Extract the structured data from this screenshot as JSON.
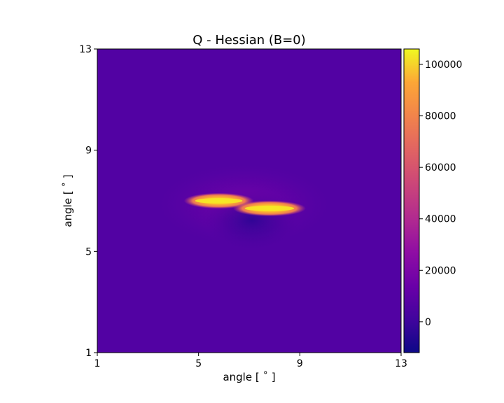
{
  "chart_data": {
    "type": "heatmap",
    "title": "Q - Hessian (B=0)",
    "xlabel": "angle [ $^\\circ$ ]",
    "ylabel": "angle [ $^\\circ$ ]",
    "xlabel_display": "angle [ ˚ ]",
    "ylabel_display": "angle [ ˚ ]",
    "xlim": [
      1,
      13
    ],
    "ylim": [
      1,
      13
    ],
    "xticks": [
      1,
      5,
      9,
      13
    ],
    "yticks": [
      1,
      5,
      9,
      13
    ],
    "colormap": "plasma",
    "colorbar": {
      "range": [
        -12000,
        106000
      ],
      "ticks": [
        0,
        20000,
        40000,
        60000,
        80000,
        100000
      ],
      "tick_labels": [
        "0",
        "20000",
        "40000",
        "60000",
        "80000",
        "100000"
      ]
    },
    "background_value": 9000,
    "features": [
      {
        "name": "left streak",
        "x_center": 5.8,
        "y_center": 7.0,
        "x_halfwidth": 1.2,
        "y_halfwidth": 0.12,
        "peak": 100000
      },
      {
        "name": "right streak",
        "x_center": 7.8,
        "y_center": 6.7,
        "x_halfwidth": 1.25,
        "y_halfwidth": 0.12,
        "peak": 100000
      }
    ],
    "grid": false
  }
}
